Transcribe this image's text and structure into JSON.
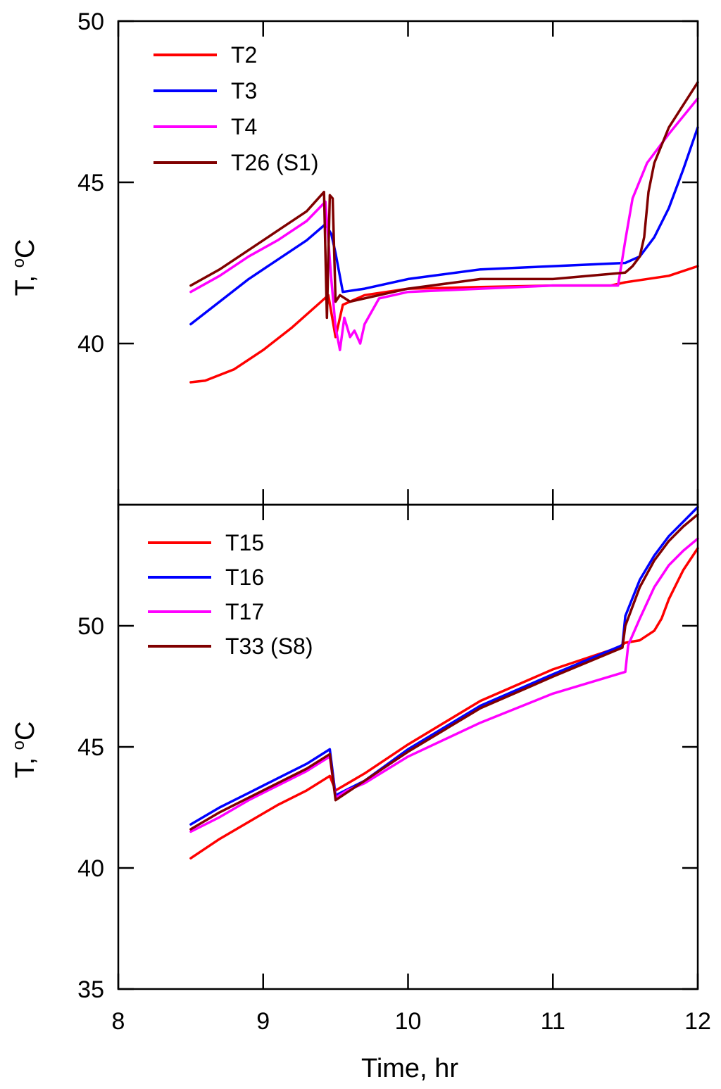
{
  "chart_data": [
    {
      "type": "line",
      "panel": "top",
      "xlabel": "",
      "ylabel": "T, °C",
      "ylabel_main": "T, ",
      "ylabel_sup": "o",
      "ylabel_unit": "C",
      "xlim": [
        8,
        12
      ],
      "ylim": [
        35,
        50
      ],
      "yticks": [
        40,
        45,
        50
      ],
      "ytick_labels": [
        "40",
        "45",
        "50"
      ],
      "legend_position": "top-left",
      "series": [
        {
          "name": "T2",
          "color": "#ff0000",
          "x": [
            8.5,
            8.6,
            8.8,
            9.0,
            9.2,
            9.4,
            9.45,
            9.5,
            9.55,
            9.7,
            10.0,
            10.5,
            11.0,
            11.4,
            11.5,
            11.8,
            12.0
          ],
          "y": [
            38.8,
            38.85,
            39.2,
            39.8,
            40.5,
            41.3,
            41.5,
            40.2,
            41.2,
            41.5,
            41.7,
            41.75,
            41.8,
            41.8,
            41.9,
            42.1,
            42.4
          ]
        },
        {
          "name": "T3",
          "color": "#0000ff",
          "x": [
            8.5,
            8.7,
            8.9,
            9.1,
            9.3,
            9.43,
            9.47,
            9.5,
            9.55,
            9.7,
            10.0,
            10.5,
            11.0,
            11.5,
            11.6,
            11.7,
            11.8,
            11.9,
            12.0
          ],
          "y": [
            40.6,
            41.3,
            42.0,
            42.6,
            43.2,
            43.7,
            43.4,
            42.8,
            41.6,
            41.7,
            42.0,
            42.3,
            42.4,
            42.5,
            42.7,
            43.3,
            44.2,
            45.4,
            46.7
          ]
        },
        {
          "name": "T4",
          "color": "#ff00ff",
          "x": [
            8.5,
            8.7,
            8.9,
            9.1,
            9.3,
            9.43,
            9.47,
            9.5,
            9.53,
            9.56,
            9.6,
            9.63,
            9.67,
            9.7,
            9.8,
            10.0,
            10.5,
            11.0,
            11.45,
            11.5,
            11.55,
            11.65,
            11.8,
            12.0
          ],
          "y": [
            41.6,
            42.1,
            42.7,
            43.2,
            43.8,
            44.4,
            42.0,
            40.5,
            39.8,
            40.8,
            40.2,
            40.4,
            40.0,
            40.6,
            41.4,
            41.6,
            41.7,
            41.8,
            41.8,
            43.2,
            44.5,
            45.6,
            46.5,
            47.6
          ]
        },
        {
          "name": "T26 (S1)",
          "color": "#800000",
          "x": [
            8.5,
            8.7,
            8.9,
            9.1,
            9.3,
            9.42,
            9.44,
            9.46,
            9.48,
            9.5,
            9.53,
            9.6,
            10.0,
            10.5,
            11.0,
            11.5,
            11.55,
            11.6,
            11.63,
            11.66,
            11.7,
            11.8,
            11.9,
            12.0
          ],
          "y": [
            41.8,
            42.3,
            42.9,
            43.5,
            44.1,
            44.7,
            40.8,
            44.6,
            44.5,
            41.3,
            41.5,
            41.3,
            41.7,
            42.0,
            42.0,
            42.2,
            42.4,
            42.7,
            43.3,
            44.7,
            45.6,
            46.7,
            47.4,
            48.1
          ]
        }
      ]
    },
    {
      "type": "line",
      "panel": "bottom",
      "xlabel": "Time, hr",
      "ylabel": "T, °C",
      "ylabel_main": "T, ",
      "ylabel_sup": "o",
      "ylabel_unit": "C",
      "xlim": [
        8,
        12
      ],
      "ylim": [
        35,
        55
      ],
      "xticks": [
        8,
        9,
        10,
        11,
        12
      ],
      "xtick_labels": [
        "8",
        "9",
        "10",
        "11",
        "12"
      ],
      "yticks": [
        35,
        40,
        45,
        50
      ],
      "ytick_labels": [
        "35",
        "40",
        "45",
        "50"
      ],
      "legend_position": "top-left",
      "series": [
        {
          "name": "T15",
          "color": "#ff0000",
          "x": [
            8.5,
            8.7,
            8.9,
            9.1,
            9.3,
            9.46,
            9.5,
            9.7,
            10.0,
            10.5,
            11.0,
            11.45,
            11.5,
            11.6,
            11.7,
            11.75,
            11.8,
            11.9,
            12.0
          ],
          "y": [
            40.4,
            41.2,
            41.9,
            42.6,
            43.2,
            43.8,
            43.2,
            43.9,
            45.1,
            46.9,
            48.2,
            49.1,
            49.3,
            49.4,
            49.8,
            50.3,
            51.1,
            52.3,
            53.2
          ]
        },
        {
          "name": "T16",
          "color": "#0000ff",
          "x": [
            8.5,
            8.7,
            8.9,
            9.1,
            9.3,
            9.46,
            9.5,
            9.7,
            10.0,
            10.5,
            11.0,
            11.48,
            11.5,
            11.6,
            11.7,
            11.8,
            11.9,
            12.0
          ],
          "y": [
            41.8,
            42.5,
            43.1,
            43.7,
            44.3,
            44.9,
            43.0,
            43.6,
            44.9,
            46.7,
            48.0,
            49.2,
            50.4,
            51.9,
            52.9,
            53.7,
            54.3,
            54.9
          ]
        },
        {
          "name": "T17",
          "color": "#ff00ff",
          "x": [
            8.5,
            8.7,
            8.9,
            9.1,
            9.3,
            9.46,
            9.5,
            9.58,
            9.7,
            10.0,
            10.5,
            11.0,
            11.5,
            11.52,
            11.6,
            11.7,
            11.8,
            11.9,
            12.0
          ],
          "y": [
            41.5,
            42.1,
            42.8,
            43.4,
            44.0,
            44.6,
            42.9,
            43.2,
            43.5,
            44.6,
            46.0,
            47.2,
            48.1,
            49.2,
            50.3,
            51.6,
            52.5,
            53.1,
            53.6
          ]
        },
        {
          "name": "T33 (S8)",
          "color": "#800000",
          "x": [
            8.5,
            8.7,
            8.9,
            9.1,
            9.3,
            9.46,
            9.5,
            9.7,
            10.0,
            10.5,
            11.0,
            11.48,
            11.5,
            11.6,
            11.7,
            11.8,
            11.9,
            12.0
          ],
          "y": [
            41.6,
            42.3,
            42.9,
            43.5,
            44.1,
            44.7,
            42.8,
            43.6,
            44.8,
            46.6,
            47.9,
            49.1,
            50.0,
            51.6,
            52.7,
            53.5,
            54.1,
            54.6
          ]
        }
      ]
    }
  ]
}
